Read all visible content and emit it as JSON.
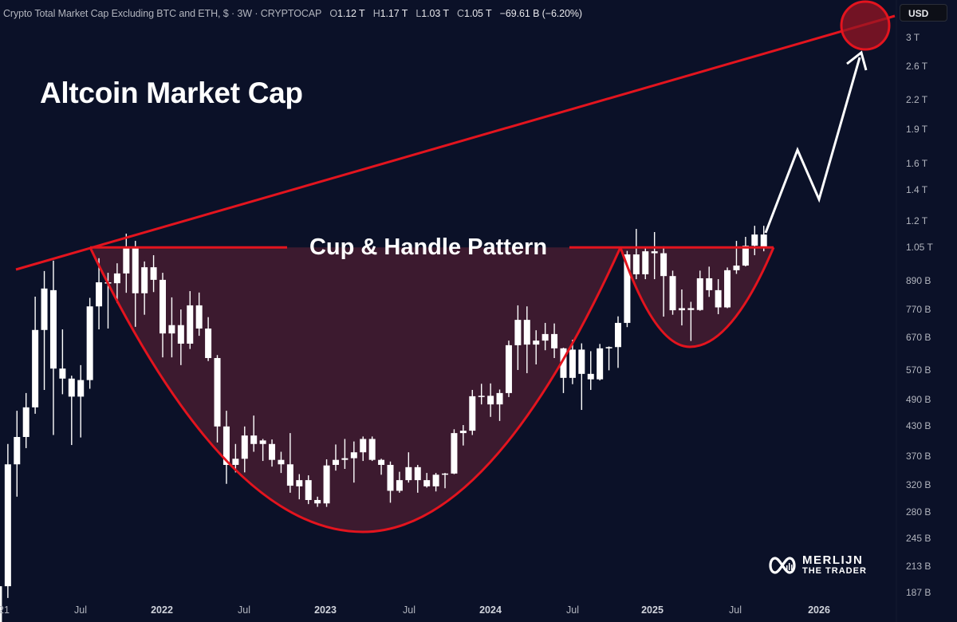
{
  "header": {
    "symbol_name": "Crypto Total Market Cap Excluding BTC and ETH, $",
    "interval": "3W",
    "exchange": "CRYPTOCAP",
    "open_label": "O",
    "open": "1.12 T",
    "high_label": "H",
    "high": "1.17 T",
    "low_label": "L",
    "low": "1.03 T",
    "close_label": "C",
    "close": "1.05 T",
    "change": "−69.61 B (−6.20%)"
  },
  "currency_button": "USD",
  "annotations": {
    "title": "Altcoin Market Cap",
    "pattern_label": "Cup & Handle Pattern"
  },
  "logo": {
    "line1": "MERLIJN",
    "line2": "THE TRADER"
  },
  "colors": {
    "background": "#0b1128",
    "candle": "#ffffff",
    "pattern_line": "#e3141e",
    "pattern_fill": "#3c1a2f",
    "arrow": "#ffffff"
  },
  "chart_data": {
    "type": "candlestick",
    "interval": "3W",
    "y_scale": "log",
    "ylim_billions": [
      161,
      3400
    ],
    "y_ticks": [
      "3 T",
      "2.6 T",
      "2.2 T",
      "1.9 T",
      "1.6 T",
      "1.4 T",
      "1.2 T",
      "1.05 T",
      "890 B",
      "770 B",
      "670 B",
      "570 B",
      "490 B",
      "430 B",
      "370 B",
      "320 B",
      "280 B",
      "245 B",
      "213 B",
      "187 B"
    ],
    "y_tick_values_billions": [
      3000,
      2600,
      2200,
      1900,
      1600,
      1400,
      1200,
      1050,
      890,
      770,
      670,
      570,
      490,
      430,
      370,
      320,
      280,
      245,
      213,
      187
    ],
    "x_ticks": [
      "21",
      "Jul",
      "2022",
      "Jul",
      "2023",
      "Jul",
      "2024",
      "Jul",
      "2025",
      "Jul",
      "2026"
    ],
    "grid": false,
    "ohlc_fields": [
      "open",
      "high",
      "low",
      "close"
    ],
    "units": "billions USD",
    "candles": [
      [
        155,
        200,
        150,
        193
      ],
      [
        193,
        393,
        182,
        355
      ],
      [
        355,
        464,
        302,
        407
      ],
      [
        407,
        507,
        385,
        472
      ],
      [
        472,
        821,
        457,
        695
      ],
      [
        695,
        933,
        515,
        855
      ],
      [
        848,
        983,
        411,
        573
      ],
      [
        573,
        697,
        504,
        545
      ],
      [
        545,
        553,
        391,
        498
      ],
      [
        498,
        583,
        406,
        541
      ],
      [
        541,
        816,
        518,
        782
      ],
      [
        782,
        995,
        697,
        882
      ],
      [
        882,
        925,
        700,
        878
      ],
      [
        878,
        970,
        795,
        922
      ],
      [
        922,
        1125,
        837,
        1050
      ],
      [
        1050,
        1085,
        706,
        835
      ],
      [
        835,
        979,
        750,
        951
      ],
      [
        951,
        1010,
        840,
        893
      ],
      [
        893,
        925,
        606,
        683
      ],
      [
        683,
        818,
        606,
        712
      ],
      [
        712,
        770,
        583,
        649
      ],
      [
        649,
        844,
        632,
        786
      ],
      [
        786,
        838,
        675,
        700
      ],
      [
        700,
        741,
        595,
        604
      ],
      [
        604,
        613,
        396,
        429
      ],
      [
        429,
        464,
        322,
        354
      ],
      [
        354,
        393,
        341,
        365
      ],
      [
        365,
        429,
        341,
        410
      ],
      [
        410,
        453,
        378,
        393
      ],
      [
        393,
        403,
        361,
        400
      ],
      [
        393,
        402,
        351,
        363
      ],
      [
        363,
        378,
        340,
        355
      ],
      [
        355,
        415,
        308,
        319
      ],
      [
        318,
        338,
        298,
        328
      ],
      [
        328,
        336,
        291,
        297
      ],
      [
        297,
        302,
        287,
        292
      ],
      [
        292,
        364,
        287,
        353
      ],
      [
        354,
        392,
        344,
        363
      ],
      [
        363,
        403,
        347,
        366
      ],
      [
        366,
        398,
        324,
        377
      ],
      [
        377,
        408,
        361,
        403
      ],
      [
        403,
        408,
        361,
        363
      ],
      [
        363,
        365,
        337,
        354
      ],
      [
        354,
        360,
        293,
        311
      ],
      [
        311,
        342,
        308,
        328
      ],
      [
        328,
        377,
        324,
        350
      ],
      [
        350,
        354,
        308,
        328
      ],
      [
        328,
        340,
        316,
        318
      ],
      [
        318,
        340,
        310,
        337
      ],
      [
        337,
        340,
        315,
        339
      ],
      [
        339,
        423,
        338,
        415
      ],
      [
        415,
        432,
        390,
        420
      ],
      [
        420,
        515,
        411,
        499
      ],
      [
        498,
        531,
        479,
        500
      ],
      [
        500,
        532,
        450,
        479
      ],
      [
        479,
        516,
        441,
        507
      ],
      [
        507,
        659,
        497,
        644
      ],
      [
        644,
        786,
        569,
        731
      ],
      [
        731,
        782,
        560,
        646
      ],
      [
        646,
        694,
        585,
        659
      ],
      [
        659,
        720,
        628,
        681
      ],
      [
        681,
        718,
        604,
        634
      ],
      [
        634,
        636,
        507,
        547
      ],
      [
        547,
        662,
        530,
        630
      ],
      [
        630,
        650,
        466,
        558
      ],
      [
        558,
        625,
        515,
        543
      ],
      [
        543,
        648,
        540,
        634
      ],
      [
        634,
        640,
        568,
        638
      ],
      [
        638,
        744,
        575,
        720
      ],
      [
        720,
        1032,
        705,
        1014
      ],
      [
        1014,
        1152,
        896,
        918
      ],
      [
        918,
        1055,
        896,
        1030
      ],
      [
        1030,
        1134,
        896,
        1020
      ],
      [
        1020,
        1056,
        743,
        910
      ],
      [
        910,
        935,
        750,
        767
      ],
      [
        767,
        851,
        711,
        775
      ],
      [
        775,
        800,
        658,
        768
      ],
      [
        768,
        935,
        765,
        900
      ],
      [
        900,
        954,
        820,
        848
      ],
      [
        848,
        896,
        752,
        778
      ],
      [
        778,
        950,
        775,
        937
      ],
      [
        937,
        1085,
        920,
        959
      ],
      [
        959,
        1107,
        955,
        1059
      ],
      [
        1059,
        1170,
        1010,
        1120
      ],
      [
        1120,
        1170,
        1030,
        1050
      ]
    ],
    "neckline_billions": 1050
  }
}
